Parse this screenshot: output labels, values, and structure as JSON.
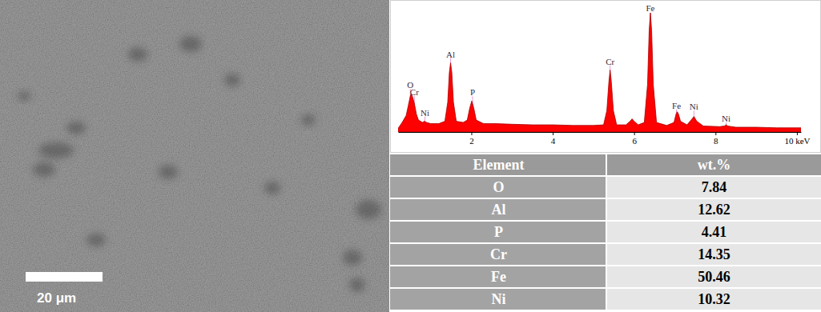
{
  "micrograph": {
    "scale_bar": "20 μm"
  },
  "chart_data": {
    "type": "area",
    "x": [
      0.2,
      0.3,
      0.4,
      0.45,
      0.5,
      0.52,
      0.55,
      0.6,
      0.65,
      0.7,
      0.8,
      0.85,
      0.9,
      1.0,
      1.2,
      1.35,
      1.42,
      1.46,
      1.49,
      1.52,
      1.56,
      1.63,
      1.8,
      1.9,
      1.96,
      2.01,
      2.06,
      2.12,
      2.3,
      2.6,
      3.0,
      3.5,
      4.0,
      4.5,
      5.0,
      5.25,
      5.33,
      5.38,
      5.41,
      5.44,
      5.49,
      5.57,
      5.8,
      5.9,
      5.95,
      6.0,
      6.1,
      6.25,
      6.33,
      6.37,
      6.4,
      6.43,
      6.47,
      6.55,
      6.8,
      6.98,
      7.03,
      7.06,
      7.09,
      7.14,
      7.3,
      7.4,
      7.47,
      7.54,
      7.7,
      8.1,
      8.22,
      8.26,
      8.3,
      8.5,
      9.0,
      9.5,
      10.0,
      10.1
    ],
    "values": [
      3,
      8,
      14,
      22,
      30,
      32,
      30,
      24,
      15,
      10,
      8,
      9,
      8,
      7,
      7,
      9,
      25,
      50,
      58,
      50,
      25,
      9,
      8,
      10,
      20,
      26,
      20,
      10,
      7,
      7,
      6.5,
      6,
      6,
      5.5,
      5.5,
      6,
      18,
      42,
      52,
      42,
      18,
      6,
      6,
      9,
      11,
      9,
      6,
      8,
      40,
      85,
      100,
      85,
      40,
      8,
      5.5,
      8,
      15,
      17,
      15,
      9,
      6,
      10,
      13,
      9,
      5,
      4.5,
      5,
      6,
      5,
      4,
      4,
      3.5,
      3.5,
      3.5
    ],
    "color": "#ff0000",
    "xlim": [
      0.2,
      10.1
    ],
    "xticks": [
      2,
      4,
      6,
      8,
      {
        "value": 10,
        "label": "10 keV"
      }
    ],
    "ylim": [
      0,
      100
    ],
    "tick_labels": "x",
    "annotations": [
      {
        "text": "O",
        "x": 0.5,
        "y": 36
      },
      {
        "text": "Cr",
        "x": 0.6,
        "y": 30
      },
      {
        "text": "Ni",
        "x": 0.86,
        "y": 13
      },
      {
        "text": "Al",
        "x": 1.49,
        "y": 62
      },
      {
        "text": "P",
        "x": 2.03,
        "y": 30
      },
      {
        "text": "Cr",
        "x": 5.41,
        "y": 56
      },
      {
        "text": "Fe",
        "x": 6.4,
        "y": 101
      },
      {
        "text": "Fe",
        "x": 7.04,
        "y": 19
      },
      {
        "text": "Ni",
        "x": 7.47,
        "y": 18
      },
      {
        "text": "Ni",
        "x": 8.26,
        "y": 8
      }
    ]
  },
  "table": {
    "header": [
      "Element",
      "wt.%"
    ],
    "rows": [
      [
        "O",
        7.84
      ],
      [
        "Al",
        12.62
      ],
      [
        "P",
        4.41
      ],
      [
        "Cr",
        14.35
      ],
      [
        "Fe",
        50.46
      ],
      [
        "Ni",
        10.32
      ]
    ]
  }
}
